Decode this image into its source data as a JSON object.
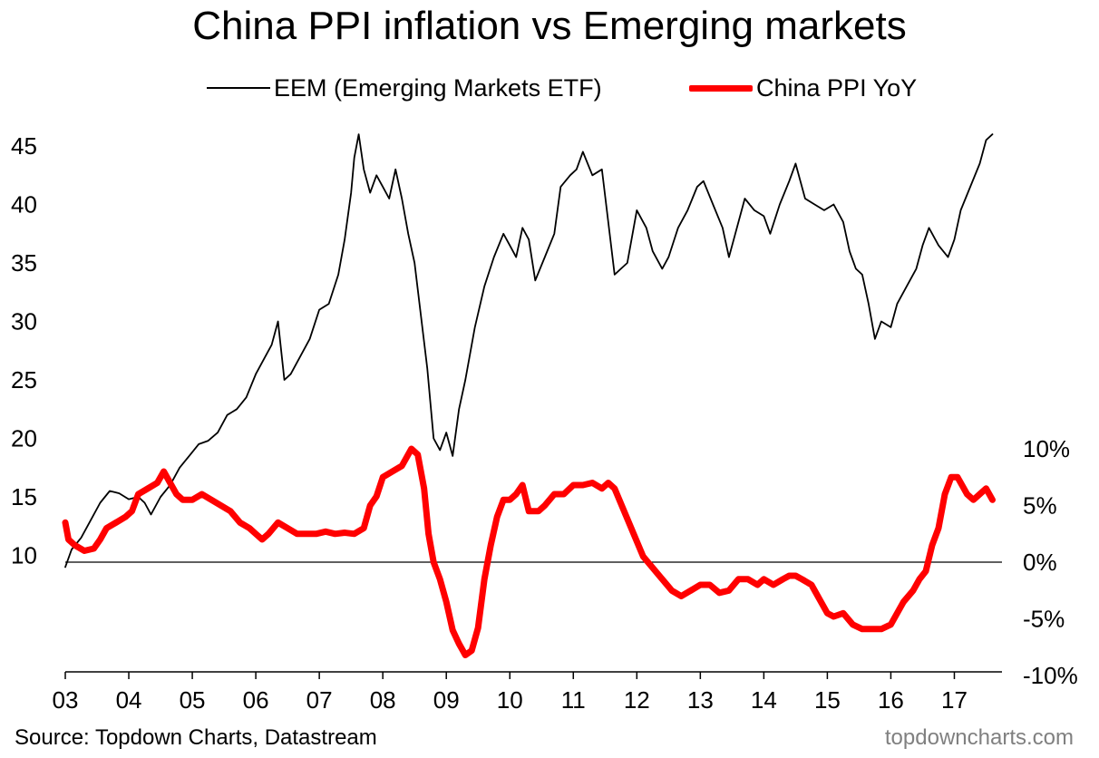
{
  "chart_data": {
    "type": "line",
    "title": "China PPI inflation vs Emerging markets",
    "colors": {
      "eem": "#000000",
      "ppi": "#ff0000",
      "zero_line": "#000000"
    },
    "left_axis": {
      "ticks": [
        10,
        15,
        20,
        25,
        30,
        35,
        40,
        45
      ],
      "range": [
        0,
        48.4
      ]
    },
    "right_axis": {
      "ticks": [
        -10,
        -5,
        0,
        5,
        10
      ],
      "labels": [
        "-10%",
        "-5%",
        "0%",
        "5%",
        "10%"
      ],
      "range": [
        -10,
        10
      ]
    },
    "x_axis": {
      "range": [
        2003,
        2017.75
      ],
      "ticks": [
        2003,
        2004,
        2005,
        2006,
        2007,
        2008,
        2009,
        2010,
        2011,
        2012,
        2013,
        2014,
        2015,
        2016,
        2017
      ],
      "labels": [
        "03",
        "04",
        "05",
        "06",
        "07",
        "08",
        "09",
        "10",
        "11",
        "12",
        "13",
        "14",
        "15",
        "16",
        "17"
      ]
    },
    "series": [
      {
        "name": "EEM (Emerging Markets ETF)",
        "axis": "left",
        "style": "thin",
        "x": [
          2003.0,
          2003.1,
          2003.25,
          2003.4,
          2003.55,
          2003.7,
          2003.85,
          2004.0,
          2004.15,
          2004.25,
          2004.35,
          2004.5,
          2004.65,
          2004.8,
          2004.95,
          2005.1,
          2005.25,
          2005.4,
          2005.55,
          2005.7,
          2005.85,
          2006.0,
          2006.15,
          2006.25,
          2006.35,
          2006.45,
          2006.55,
          2006.7,
          2006.85,
          2007.0,
          2007.15,
          2007.3,
          2007.4,
          2007.5,
          2007.55,
          2007.62,
          2007.7,
          2007.8,
          2007.9,
          2008.0,
          2008.1,
          2008.2,
          2008.3,
          2008.4,
          2008.5,
          2008.6,
          2008.7,
          2008.8,
          2008.9,
          2009.0,
          2009.1,
          2009.2,
          2009.3,
          2009.45,
          2009.6,
          2009.75,
          2009.9,
          2010.0,
          2010.1,
          2010.2,
          2010.3,
          2010.4,
          2010.55,
          2010.7,
          2010.8,
          2010.95,
          2011.05,
          2011.15,
          2011.3,
          2011.45,
          2011.55,
          2011.65,
          2011.75,
          2011.85,
          2012.0,
          2012.15,
          2012.25,
          2012.4,
          2012.5,
          2012.65,
          2012.8,
          2012.95,
          2013.05,
          2013.2,
          2013.35,
          2013.45,
          2013.55,
          2013.7,
          2013.85,
          2014.0,
          2014.1,
          2014.25,
          2014.4,
          2014.5,
          2014.65,
          2014.8,
          2014.95,
          2015.1,
          2015.25,
          2015.35,
          2015.45,
          2015.55,
          2015.65,
          2015.75,
          2015.85,
          2016.0,
          2016.1,
          2016.25,
          2016.4,
          2016.5,
          2016.6,
          2016.75,
          2016.9,
          2017.0,
          2017.1,
          2017.25,
          2017.4,
          2017.5,
          2017.6
        ],
        "values": [
          9.0,
          10.5,
          11.5,
          13.0,
          14.5,
          15.5,
          15.3,
          14.8,
          15.0,
          14.5,
          13.5,
          15.0,
          16.0,
          17.5,
          18.5,
          19.5,
          19.8,
          20.5,
          22.0,
          22.5,
          23.5,
          25.5,
          27.0,
          28.0,
          30.0,
          25.0,
          25.5,
          27.0,
          28.5,
          31.0,
          31.5,
          34.0,
          37.0,
          41.0,
          44.0,
          46.0,
          43.0,
          41.0,
          42.5,
          41.5,
          40.5,
          43.0,
          40.5,
          37.5,
          35.0,
          30.5,
          26.0,
          20.0,
          19.0,
          20.5,
          18.5,
          22.5,
          25.0,
          29.5,
          33.0,
          35.5,
          37.5,
          36.5,
          35.5,
          38.0,
          37.0,
          33.5,
          35.5,
          37.5,
          41.5,
          42.5,
          43.0,
          44.5,
          42.5,
          43.0,
          38.5,
          34.0,
          34.5,
          35.0,
          39.5,
          38.0,
          36.0,
          34.5,
          35.5,
          38.0,
          39.5,
          41.5,
          42.0,
          40.0,
          38.0,
          35.5,
          37.5,
          40.5,
          39.5,
          39.0,
          37.5,
          40.0,
          42.0,
          43.5,
          40.5,
          40.0,
          39.5,
          40.0,
          38.5,
          36.0,
          34.5,
          34.0,
          31.5,
          28.5,
          30.0,
          29.5,
          31.5,
          33.0,
          34.5,
          36.5,
          38.0,
          36.5,
          35.5,
          37.0,
          39.5,
          41.5,
          43.5,
          45.5,
          46.0
        ]
      },
      {
        "name": "China PPI YoY",
        "axis": "right",
        "style": "thick",
        "x": [
          2003.0,
          2003.05,
          2003.15,
          2003.3,
          2003.45,
          2003.55,
          2003.65,
          2003.8,
          2003.95,
          2004.05,
          2004.15,
          2004.3,
          2004.45,
          2004.55,
          2004.65,
          2004.75,
          2004.85,
          2005.0,
          2005.15,
          2005.3,
          2005.45,
          2005.6,
          2005.75,
          2005.9,
          2006.0,
          2006.1,
          2006.2,
          2006.35,
          2006.5,
          2006.65,
          2006.8,
          2006.95,
          2007.1,
          2007.25,
          2007.4,
          2007.55,
          2007.7,
          2007.8,
          2007.9,
          2008.0,
          2008.15,
          2008.3,
          2008.45,
          2008.55,
          2008.6,
          2008.65,
          2008.72,
          2008.8,
          2008.9,
          2009.0,
          2009.1,
          2009.2,
          2009.3,
          2009.4,
          2009.5,
          2009.6,
          2009.7,
          2009.8,
          2009.9,
          2010.0,
          2010.1,
          2010.2,
          2010.3,
          2010.45,
          2010.55,
          2010.7,
          2010.85,
          2011.0,
          2011.15,
          2011.3,
          2011.45,
          2011.55,
          2011.65,
          2011.8,
          2011.95,
          2012.1,
          2012.25,
          2012.4,
          2012.55,
          2012.7,
          2012.85,
          2013.0,
          2013.15,
          2013.3,
          2013.45,
          2013.6,
          2013.75,
          2013.9,
          2014.0,
          2014.15,
          2014.3,
          2014.4,
          2014.5,
          2014.6,
          2014.75,
          2014.9,
          2015.0,
          2015.1,
          2015.25,
          2015.4,
          2015.55,
          2015.7,
          2015.85,
          2016.0,
          2016.1,
          2016.2,
          2016.35,
          2016.45,
          2016.55,
          2016.65,
          2016.75,
          2016.85,
          2016.95,
          2017.05,
          2017.2,
          2017.3,
          2017.4,
          2017.5,
          2017.6
        ],
        "values": [
          3.5,
          2.0,
          1.5,
          1.0,
          1.2,
          2.0,
          3.0,
          3.5,
          4.0,
          4.5,
          6.0,
          6.5,
          7.0,
          8.0,
          7.0,
          6.0,
          5.5,
          5.5,
          6.0,
          5.5,
          5.0,
          4.5,
          3.5,
          3.0,
          2.5,
          2.0,
          2.5,
          3.5,
          3.0,
          2.5,
          2.5,
          2.5,
          2.7,
          2.5,
          2.6,
          2.5,
          3.0,
          5.0,
          5.8,
          7.5,
          8.0,
          8.5,
          10.0,
          9.5,
          8.0,
          6.5,
          2.5,
          0.0,
          -1.5,
          -3.5,
          -6.0,
          -7.2,
          -8.2,
          -7.8,
          -5.8,
          -1.5,
          1.5,
          4.0,
          5.5,
          5.5,
          6.0,
          6.8,
          4.5,
          4.5,
          5.0,
          6.0,
          6.0,
          6.8,
          6.8,
          7.0,
          6.5,
          7.0,
          6.5,
          4.5,
          2.5,
          0.5,
          -0.5,
          -1.5,
          -2.5,
          -3.0,
          -2.5,
          -2.0,
          -2.0,
          -2.7,
          -2.5,
          -1.5,
          -1.5,
          -2.0,
          -1.5,
          -2.0,
          -1.5,
          -1.2,
          -1.2,
          -1.5,
          -2.0,
          -3.5,
          -4.5,
          -4.8,
          -4.5,
          -5.5,
          -5.9,
          -5.9,
          -5.9,
          -5.5,
          -4.5,
          -3.5,
          -2.5,
          -1.5,
          -0.8,
          1.5,
          3.0,
          6.0,
          7.5,
          7.5,
          6.0,
          5.5,
          6.0,
          6.5,
          5.5
        ]
      }
    ],
    "legend_position": "top-center"
  },
  "labels": {
    "legend_eem": "EEM (Emerging Markets ETF)",
    "legend_ppi": "China PPI YoY",
    "source": "Source: Topdown Charts, Datastream",
    "watermark": "topdowncharts.com"
  }
}
